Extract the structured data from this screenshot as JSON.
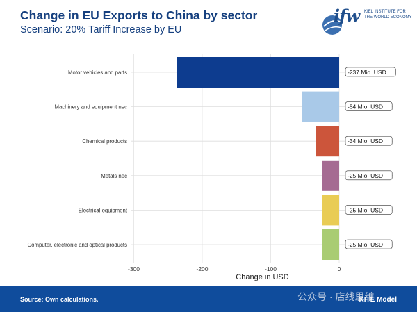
{
  "header": {
    "title": "Change in EU Exports to China by sector",
    "subtitle": "Scenario: 20% Tariff Increase by EU"
  },
  "logo": {
    "mark": "ifw",
    "line1": "KIEL INSTITUTE FOR",
    "line2": "THE WORLD ECONOMY"
  },
  "footer": {
    "source": "Source: Own calculations.",
    "watermark": "公众号 · 店线思维",
    "model": "KITE Model"
  },
  "chart_data": {
    "type": "bar",
    "orientation": "horizontal",
    "title": "",
    "xlabel": "Change in USD",
    "ylabel": "",
    "xlim": [
      -300,
      0
    ],
    "xticks": [
      -300,
      -200,
      -100,
      0
    ],
    "xtick_labels": [
      "-300",
      "-200",
      "-100",
      "0"
    ],
    "grid": true,
    "categories": [
      "Motor vehicles and parts",
      "Machinery and equipment nec",
      "Chemical products",
      "Metals nec",
      "Electrical equipment",
      "Computer, electronic and optical products"
    ],
    "values": [
      -237,
      -54,
      -34,
      -25,
      -25,
      -25
    ],
    "data_labels": [
      "-237 Mio. USD",
      "-54 Mio. USD",
      "-34 Mio. USD",
      "-25 Mio. USD",
      "-25 Mio. USD",
      "-25 Mio. USD"
    ],
    "colors": [
      "#0d3c8f",
      "#a9c9e8",
      "#cc553b",
      "#a56b92",
      "#e9cc55",
      "#a9cc73"
    ]
  }
}
